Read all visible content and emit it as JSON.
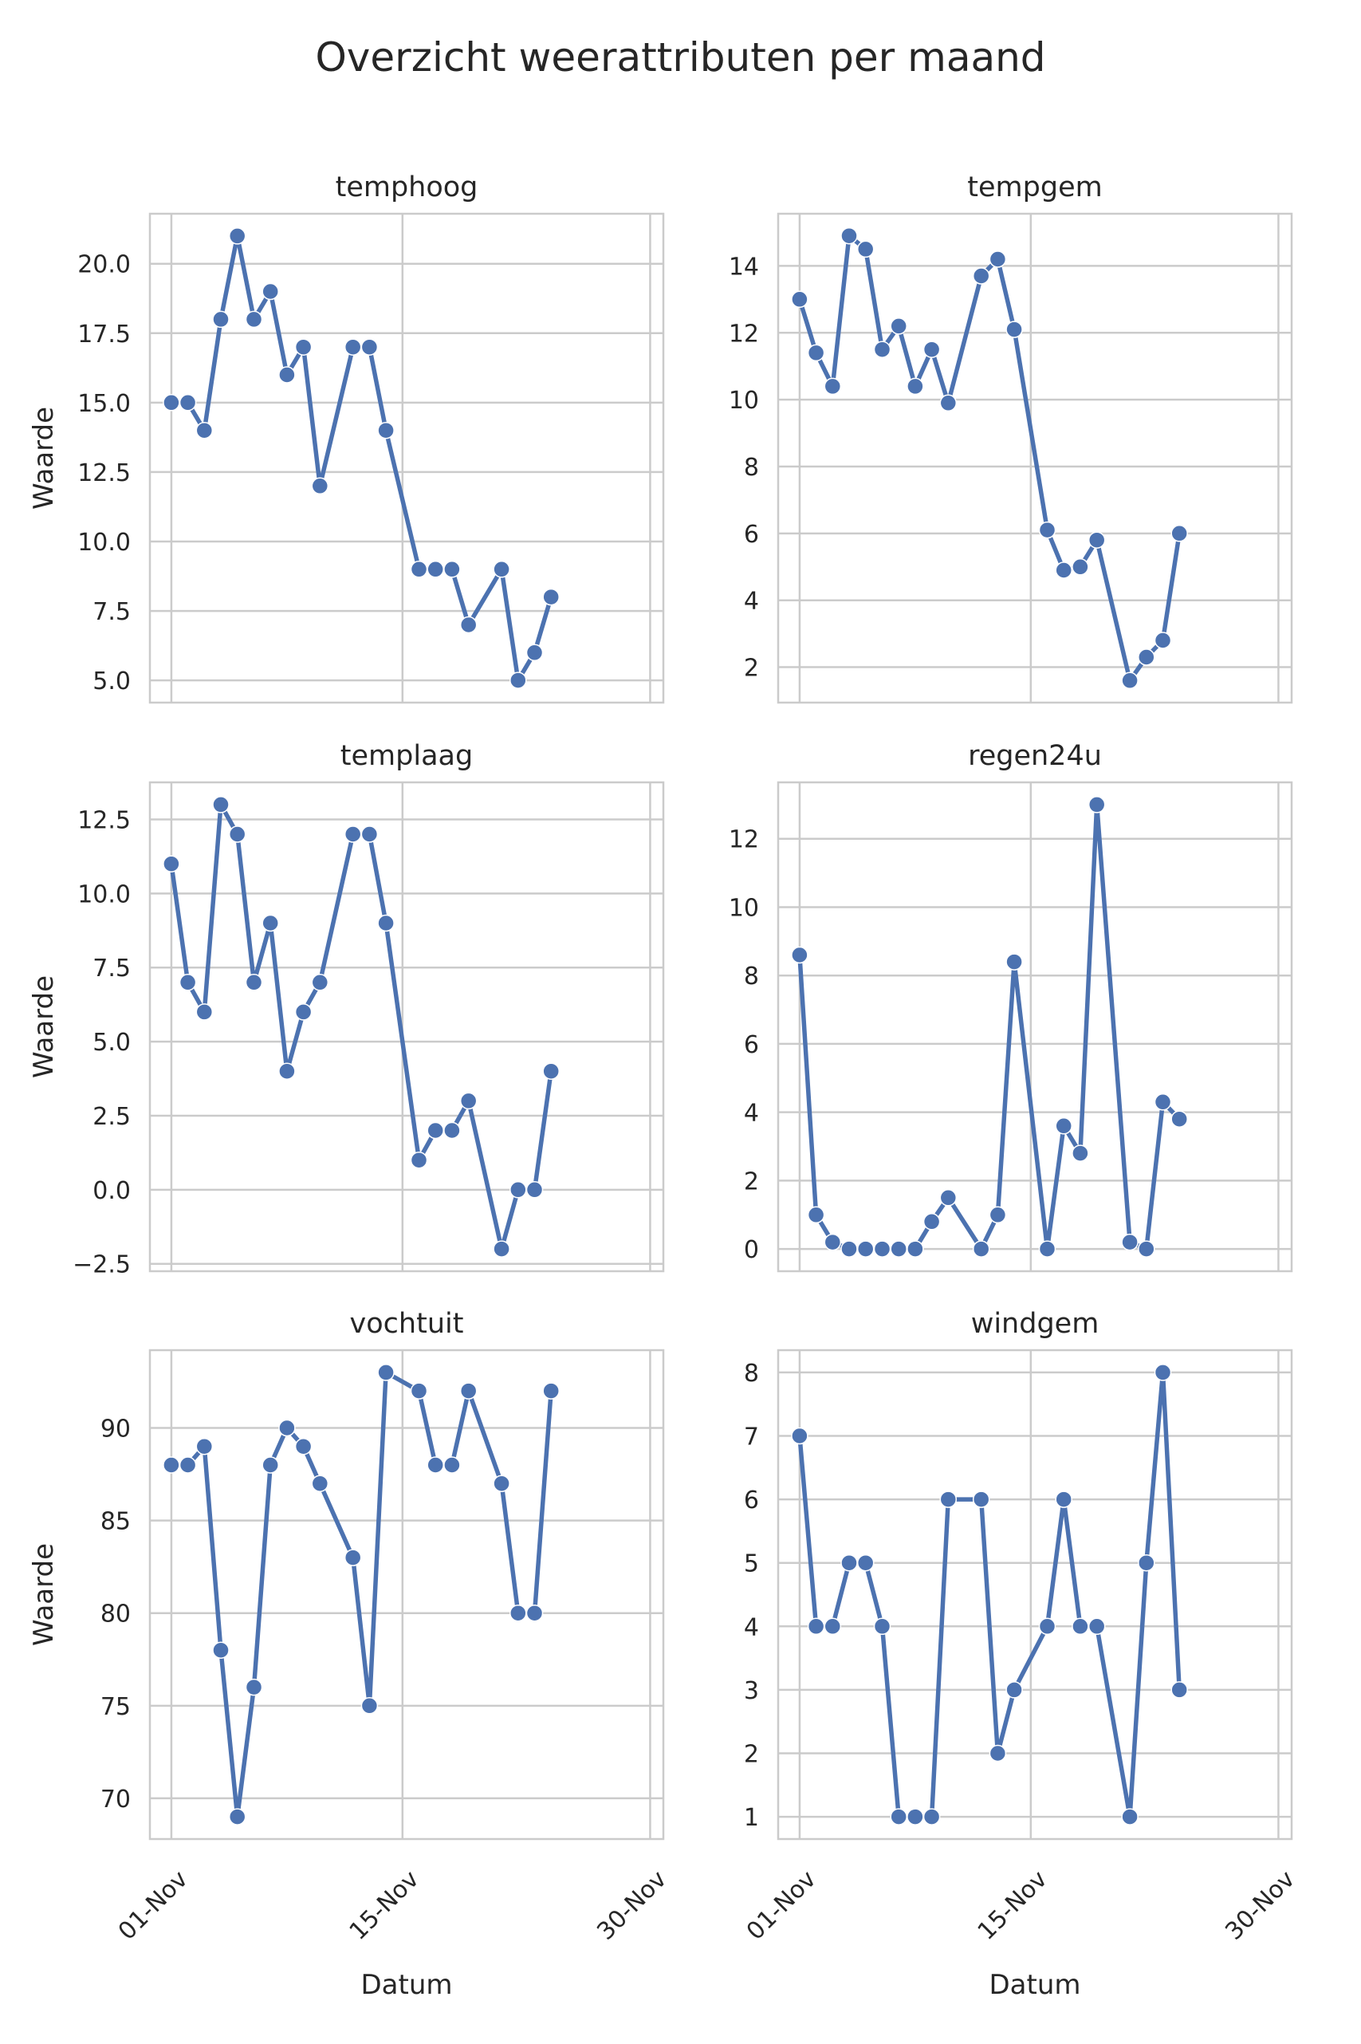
{
  "chart_data": {
    "type": "line",
    "title": "Overzicht weerattributen per maand",
    "xlabel": "Datum",
    "ylabel": "Waarde",
    "x_days": [
      1,
      2,
      3,
      4,
      5,
      6,
      7,
      8,
      9,
      10,
      12,
      13,
      14,
      16,
      17,
      18,
      19,
      21,
      22,
      23,
      24
    ],
    "x_tick_days": [
      1,
      15,
      30
    ],
    "x_tick_labels": [
      "01-Nov",
      "15-Nov",
      "30-Nov"
    ],
    "xlim": [
      -0.3,
      30.8
    ],
    "grid": true,
    "legend": "none",
    "line_color": "#4C72B0",
    "marker_edge_color": "#ffffff",
    "grid_color": "#CBCBCB",
    "spine_color": "#CBCBCB",
    "text_color": "#262626",
    "subplots": [
      {
        "key": "temphoog",
        "title": "temphoog",
        "values": [
          15,
          15,
          14,
          18,
          21,
          18,
          19,
          16,
          17,
          12,
          17,
          17,
          14,
          9,
          9,
          9,
          7,
          9,
          5,
          6,
          8
        ],
        "yticks": [
          5,
          7.5,
          10,
          12.5,
          15,
          17.5,
          20
        ],
        "ytick_labels": [
          "5.0",
          "7.5",
          "10.0",
          "12.5",
          "15.0",
          "17.5",
          "20.0"
        ],
        "ylim": [
          4.2,
          21.8
        ]
      },
      {
        "key": "tempgem",
        "title": "tempgem",
        "values": [
          13.0,
          11.4,
          10.4,
          14.9,
          14.5,
          11.5,
          12.2,
          10.4,
          11.5,
          9.9,
          13.7,
          14.2,
          12.1,
          6.1,
          4.9,
          5.0,
          5.8,
          1.6,
          2.3,
          2.8,
          6.0
        ],
        "yticks": [
          2,
          4,
          6,
          8,
          10,
          12,
          14
        ],
        "ytick_labels": [
          "2",
          "4",
          "6",
          "8",
          "10",
          "12",
          "14"
        ],
        "ylim": [
          0.94,
          15.56
        ]
      },
      {
        "key": "templaag",
        "title": "templaag",
        "values": [
          11,
          7,
          6,
          13,
          12,
          7,
          9,
          4,
          6,
          7,
          12,
          12,
          9,
          1,
          2,
          2,
          3,
          -2,
          0,
          0,
          4
        ],
        "yticks": [
          -2.5,
          0,
          2.5,
          5,
          7.5,
          10,
          12.5
        ],
        "ytick_labels": [
          "−2.5",
          "0.0",
          "2.5",
          "5.0",
          "7.5",
          "10.0",
          "12.5"
        ],
        "ylim": [
          -2.75,
          13.75
        ]
      },
      {
        "key": "regen24u",
        "title": "regen24u",
        "values": [
          8.6,
          1.0,
          0.2,
          0,
          0,
          0,
          0,
          0,
          0.8,
          1.5,
          0,
          1.0,
          8.4,
          0,
          3.6,
          2.8,
          13.0,
          0.2,
          0,
          4.3,
          3.8
        ],
        "yticks": [
          0,
          2,
          4,
          6,
          8,
          10,
          12
        ],
        "ytick_labels": [
          "0",
          "2",
          "4",
          "6",
          "8",
          "10",
          "12"
        ],
        "ylim": [
          -0.65,
          13.65
        ]
      },
      {
        "key": "vochtuit",
        "title": "vochtuit",
        "values": [
          88,
          88,
          89,
          78,
          69,
          76,
          88,
          90,
          89,
          87,
          83,
          75,
          93,
          92,
          88,
          88,
          92,
          87,
          80,
          80,
          92
        ],
        "yticks": [
          70,
          75,
          80,
          85,
          90
        ],
        "ytick_labels": [
          "70",
          "75",
          "80",
          "85",
          "90"
        ],
        "ylim": [
          67.8,
          94.2
        ]
      },
      {
        "key": "windgem",
        "title": "windgem",
        "values": [
          7,
          4,
          4,
          5,
          5,
          4,
          1,
          1,
          1,
          6,
          6,
          2,
          3,
          4,
          6,
          4,
          4,
          1,
          5,
          8,
          3
        ],
        "yticks": [
          1,
          2,
          3,
          4,
          5,
          6,
          7,
          8
        ],
        "ytick_labels": [
          "1",
          "2",
          "3",
          "4",
          "5",
          "6",
          "7",
          "8"
        ],
        "ylim": [
          0.65,
          8.35
        ]
      }
    ]
  }
}
